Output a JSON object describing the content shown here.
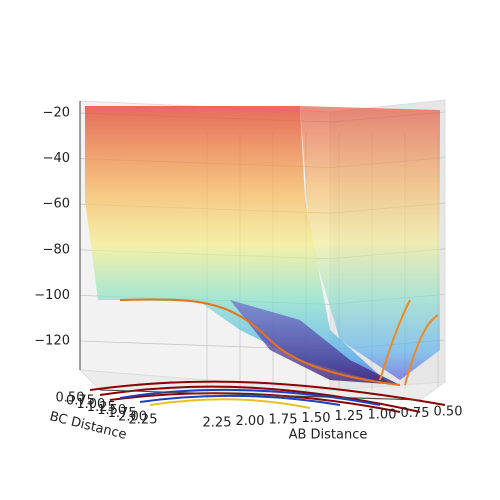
{
  "chart_data": {
    "type": "surface3d",
    "xlabel": "AB Distance",
    "ylabel": "BC Distance",
    "zlim": [
      -135,
      -15
    ],
    "zticks": [
      {
        "value": -20,
        "label": "−20"
      },
      {
        "value": -40,
        "label": "−40"
      },
      {
        "value": -60,
        "label": "−60"
      },
      {
        "value": -80,
        "label": "−80"
      },
      {
        "value": -100,
        "label": "−100"
      },
      {
        "value": -120,
        "label": "−120"
      }
    ],
    "xlim": [
      2.25,
      0.5
    ],
    "xticks": [
      {
        "value": 2.25,
        "label": "2.25"
      },
      {
        "value": 2,
        "label": "2.00"
      },
      {
        "value": 1.75,
        "label": "1.75"
      },
      {
        "value": 1.5,
        "label": "1.50"
      },
      {
        "value": 1.25,
        "label": "1.25"
      },
      {
        "value": 1,
        "label": "1.00"
      },
      {
        "value": 0.75,
        "label": "0.75"
      },
      {
        "value": 0.5,
        "label": "0.50"
      }
    ],
    "ylim": [
      0.5,
      2.25
    ],
    "yticks": [
      {
        "value": 0.5,
        "label": "0.50"
      },
      {
        "value": 0.75,
        "label": "0.75"
      },
      {
        "value": 1,
        "label": "1.00"
      },
      {
        "value": 1.25,
        "label": "1.25"
      },
      {
        "value": 1.5,
        "label": "1.50"
      },
      {
        "value": 1.75,
        "label": "1.75"
      },
      {
        "value": 2,
        "label": "2.00"
      },
      {
        "value": 2.25,
        "label": "2.25"
      }
    ],
    "grid": true
  }
}
